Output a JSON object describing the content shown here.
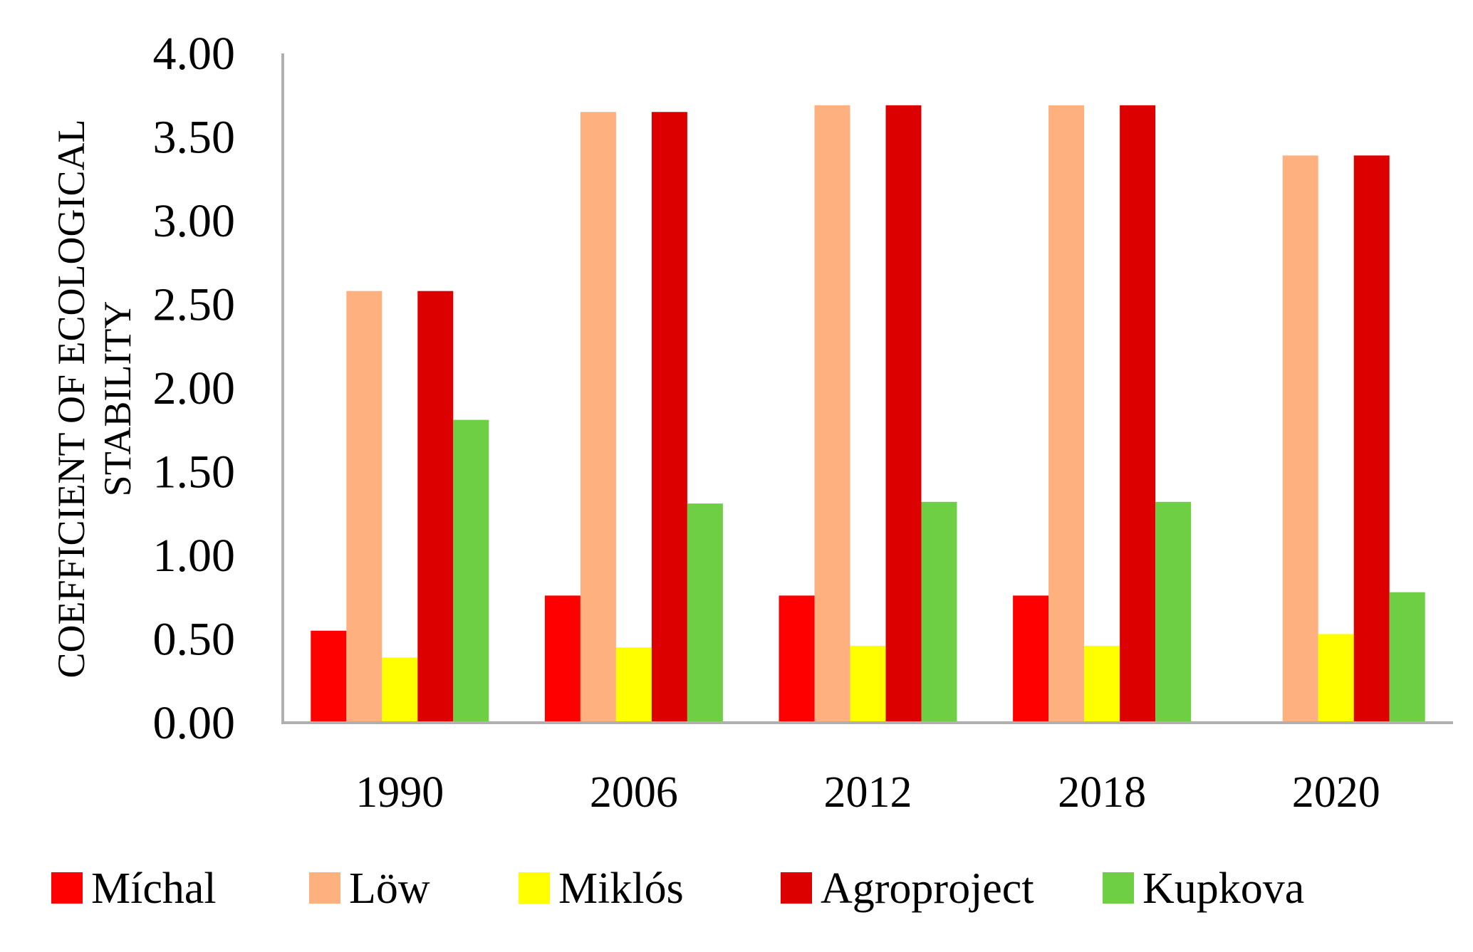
{
  "chart_data": {
    "type": "bar",
    "title": "",
    "xlabel": "",
    "ylabel_lines": [
      "COEFFICIENT OF ECOLOGICAL",
      "STABILITY"
    ],
    "ylim": [
      0,
      4
    ],
    "y_ticks": [
      "0.00",
      "0.50",
      "1.00",
      "1.50",
      "2.00",
      "2.50",
      "3.00",
      "3.50",
      "4.00"
    ],
    "grid": false,
    "legend_position": "bottom",
    "categories": [
      "1990",
      "2006",
      "2012",
      "2018",
      "2020"
    ],
    "series": [
      {
        "name": "Míchal",
        "color": "#ff0000",
        "values": [
          0.55,
          0.76,
          0.76,
          0.76,
          null
        ]
      },
      {
        "name": "Löw",
        "color": "#ffb07f",
        "values": [
          2.58,
          3.65,
          3.69,
          3.69,
          3.39
        ]
      },
      {
        "name": "Miklós",
        "color": "#ffff00",
        "values": [
          0.39,
          0.45,
          0.46,
          0.46,
          0.53
        ]
      },
      {
        "name": "Agroproject",
        "color": "#dd0000",
        "values": [
          2.58,
          3.65,
          3.69,
          3.69,
          3.39
        ]
      },
      {
        "name": "Kupkova",
        "color": "#6ecf45",
        "values": [
          1.81,
          1.31,
          1.32,
          1.32,
          0.78
        ]
      }
    ]
  }
}
